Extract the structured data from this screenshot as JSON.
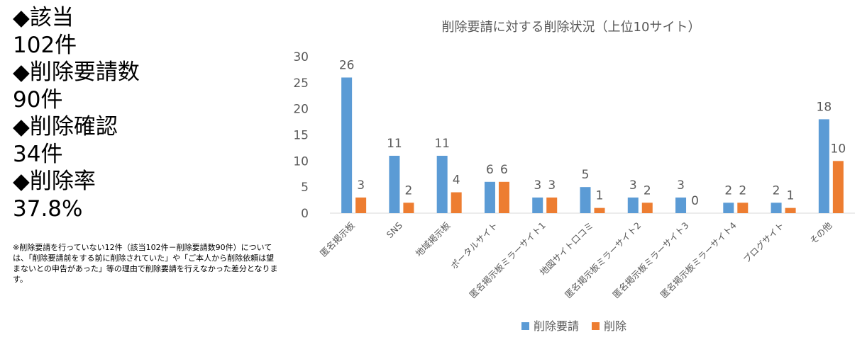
{
  "stats": {
    "line1": "◆該当",
    "line2": "102件",
    "line3": "◆削除要請数",
    "line4": "90件",
    "line5": "◆削除確認",
    "line6": "34件",
    "line7": "◆削除率",
    "line8": "37.8%"
  },
  "note": "※削除要請を行っていない12件（該当102件－削除要請数90件）については、「削除要請前をする前に削除されていた」や「ご本人から削除依頼は望まないとの申告があった」等の理由で削除要請を行えなかった差分となります。",
  "colors": {
    "request": "#5B9BD5",
    "delete": "#ED7D31",
    "accent": "#ED7D31"
  },
  "chart_data": {
    "type": "bar",
    "title": "削除要請に対する削除状況（上位10サイト）",
    "categories": [
      "匿名掲示板",
      "SNS",
      "地域掲示板",
      "ポータルサイト",
      "匿名掲示板ミラーサイト1",
      "地図サイト口コミ",
      "匿名掲示板ミラーサイト2",
      "匿名掲示板ミラーサイト3",
      "匿名掲示板ミラーサイト4",
      "ブログサイト",
      "その他"
    ],
    "series": [
      {
        "name": "削除要請",
        "values": [
          26,
          11,
          11,
          6,
          3,
          5,
          3,
          3,
          2,
          2,
          18
        ]
      },
      {
        "name": "削除",
        "values": [
          3,
          2,
          4,
          6,
          3,
          1,
          2,
          0,
          2,
          1,
          10
        ]
      }
    ],
    "ylim": [
      0,
      30
    ],
    "yticks": [
      "0",
      "5",
      "10",
      "15",
      "20",
      "25",
      "30"
    ],
    "grid": false,
    "legend": "bottom",
    "data_labels": true
  }
}
